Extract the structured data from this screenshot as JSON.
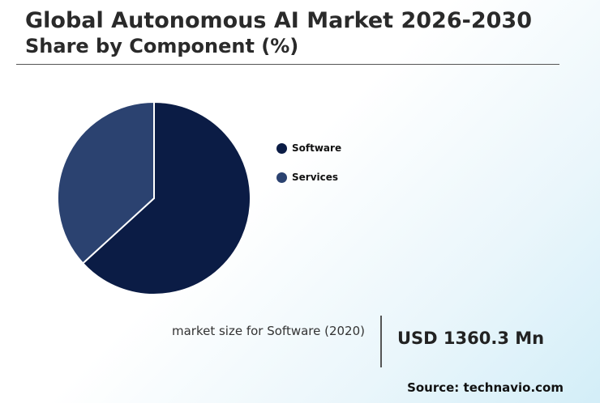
{
  "header": {
    "title": "Global Autonomous AI Market 2026-2030",
    "subtitle": "Share by Component (%)"
  },
  "chart_data": {
    "type": "pie",
    "categories": [
      "Software",
      "Services"
    ],
    "values": [
      63.2,
      36.8
    ],
    "colors": [
      "#0b1c45",
      "#2b4270"
    ],
    "legend_position": "right"
  },
  "stat": {
    "label": "market size for Software (2020)",
    "value": "USD 1360.3 Mn"
  },
  "source": "Source: technavio.com"
}
